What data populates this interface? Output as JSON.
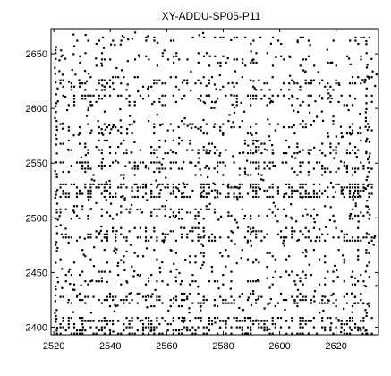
{
  "chart_data": {
    "type": "scatter",
    "title": "XY-ADDU-SP05-P11",
    "xlabel": "",
    "ylabel": "",
    "xlim": [
      2519,
      2635
    ],
    "ylim": [
      2393,
      2673
    ],
    "x_ticks": [
      2520,
      2540,
      2560,
      2580,
      2600,
      2620
    ],
    "x_tick_labels": [
      "2520",
      "2540",
      "2560",
      "2580",
      "2600",
      "2620"
    ],
    "y_ticks": [
      2400,
      2450,
      2500,
      2550,
      2600,
      2650
    ],
    "y_tick_labels": [
      "2400",
      "2450",
      "2500",
      "2550",
      "2600",
      "2650"
    ],
    "grid": false,
    "legend": "none",
    "marker_color": "#000000",
    "marker": "square",
    "description_of_pattern": "dense black dots forming horizontal bands",
    "bands": [
      {
        "y_range": [
          2660,
          2668
        ],
        "x_range": [
          2525,
          2632
        ],
        "density": 0.1
      },
      {
        "y_range": [
          2640,
          2652
        ],
        "x_range": [
          2525,
          2632
        ],
        "density": 0.12
      },
      {
        "y_range": [
          2618,
          2632
        ],
        "x_range": [
          2522,
          2633
        ],
        "density": 0.22
      },
      {
        "y_range": [
          2604,
          2614
        ],
        "x_range": [
          2522,
          2633
        ],
        "density": 0.3
      },
      {
        "y_range": [
          2578,
          2592
        ],
        "x_range": [
          2522,
          2633
        ],
        "density": 0.1
      },
      {
        "y_range": [
          2560,
          2572
        ],
        "x_range": [
          2522,
          2633
        ],
        "density": 0.18
      },
      {
        "y_range": [
          2540,
          2554
        ],
        "x_range": [
          2522,
          2633
        ],
        "density": 0.22
      },
      {
        "y_range": [
          2520,
          2534
        ],
        "x_range": [
          2522,
          2633
        ],
        "density": 0.3
      },
      {
        "y_range": [
          2500,
          2514
        ],
        "x_range": [
          2522,
          2633
        ],
        "density": 0.18
      },
      {
        "y_range": [
          2480,
          2494
        ],
        "x_range": [
          2522,
          2633
        ],
        "density": 0.2
      },
      {
        "y_range": [
          2460,
          2472
        ],
        "x_range": [
          2522,
          2633
        ],
        "density": 0.1
      },
      {
        "y_range": [
          2440,
          2454
        ],
        "x_range": [
          2522,
          2633
        ],
        "density": 0.2
      },
      {
        "y_range": [
          2420,
          2434
        ],
        "x_range": [
          2522,
          2633
        ],
        "density": 0.18
      },
      {
        "y_range": [
          2395,
          2412
        ],
        "x_range": [
          2522,
          2633
        ],
        "density": 0.34
      }
    ],
    "edge_columns": [
      {
        "x": 2520.5,
        "y_range": [
          2395,
          2668
        ],
        "density": 0.55
      },
      {
        "x": 2630.5,
        "y_range": [
          2395,
          2668
        ],
        "density": 0.35
      }
    ]
  }
}
